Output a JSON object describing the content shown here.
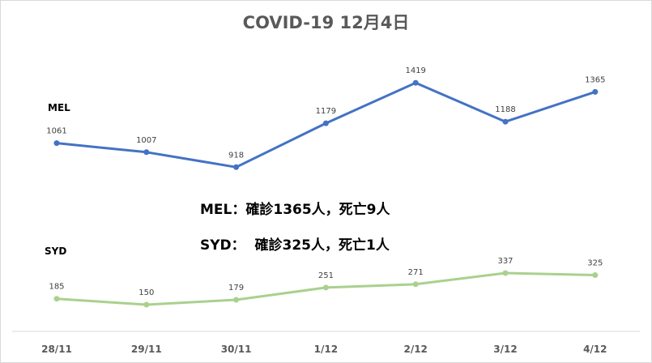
{
  "chart_data": {
    "type": "line",
    "title": "COVID-19   12月4日",
    "categories": [
      "28/11",
      "29/11",
      "30/11",
      "1/12",
      "2/12",
      "3/12",
      "4/12"
    ],
    "series": [
      {
        "name": "MEL",
        "color": "#4472c4",
        "values": [
          1061,
          1007,
          918,
          1179,
          1419,
          1188,
          1365
        ]
      },
      {
        "name": "SYD",
        "color": "#a9d18e",
        "values": [
          185,
          150,
          179,
          251,
          271,
          337,
          325
        ]
      }
    ],
    "annotations": [
      "MEL：確診1365人，死亡9人",
      "SYD：  確診325人，死亡1人"
    ],
    "xlabel": "",
    "ylabel": "",
    "grid": false,
    "legend": "none (series labeled inline)"
  },
  "title": "COVID-19   12月4日",
  "labels": {
    "mel": "MEL",
    "syd": "SYD"
  },
  "summary": {
    "mel": "MEL：確診1365人，死亡9人",
    "syd": "SYD：  確診325人，死亡1人"
  }
}
